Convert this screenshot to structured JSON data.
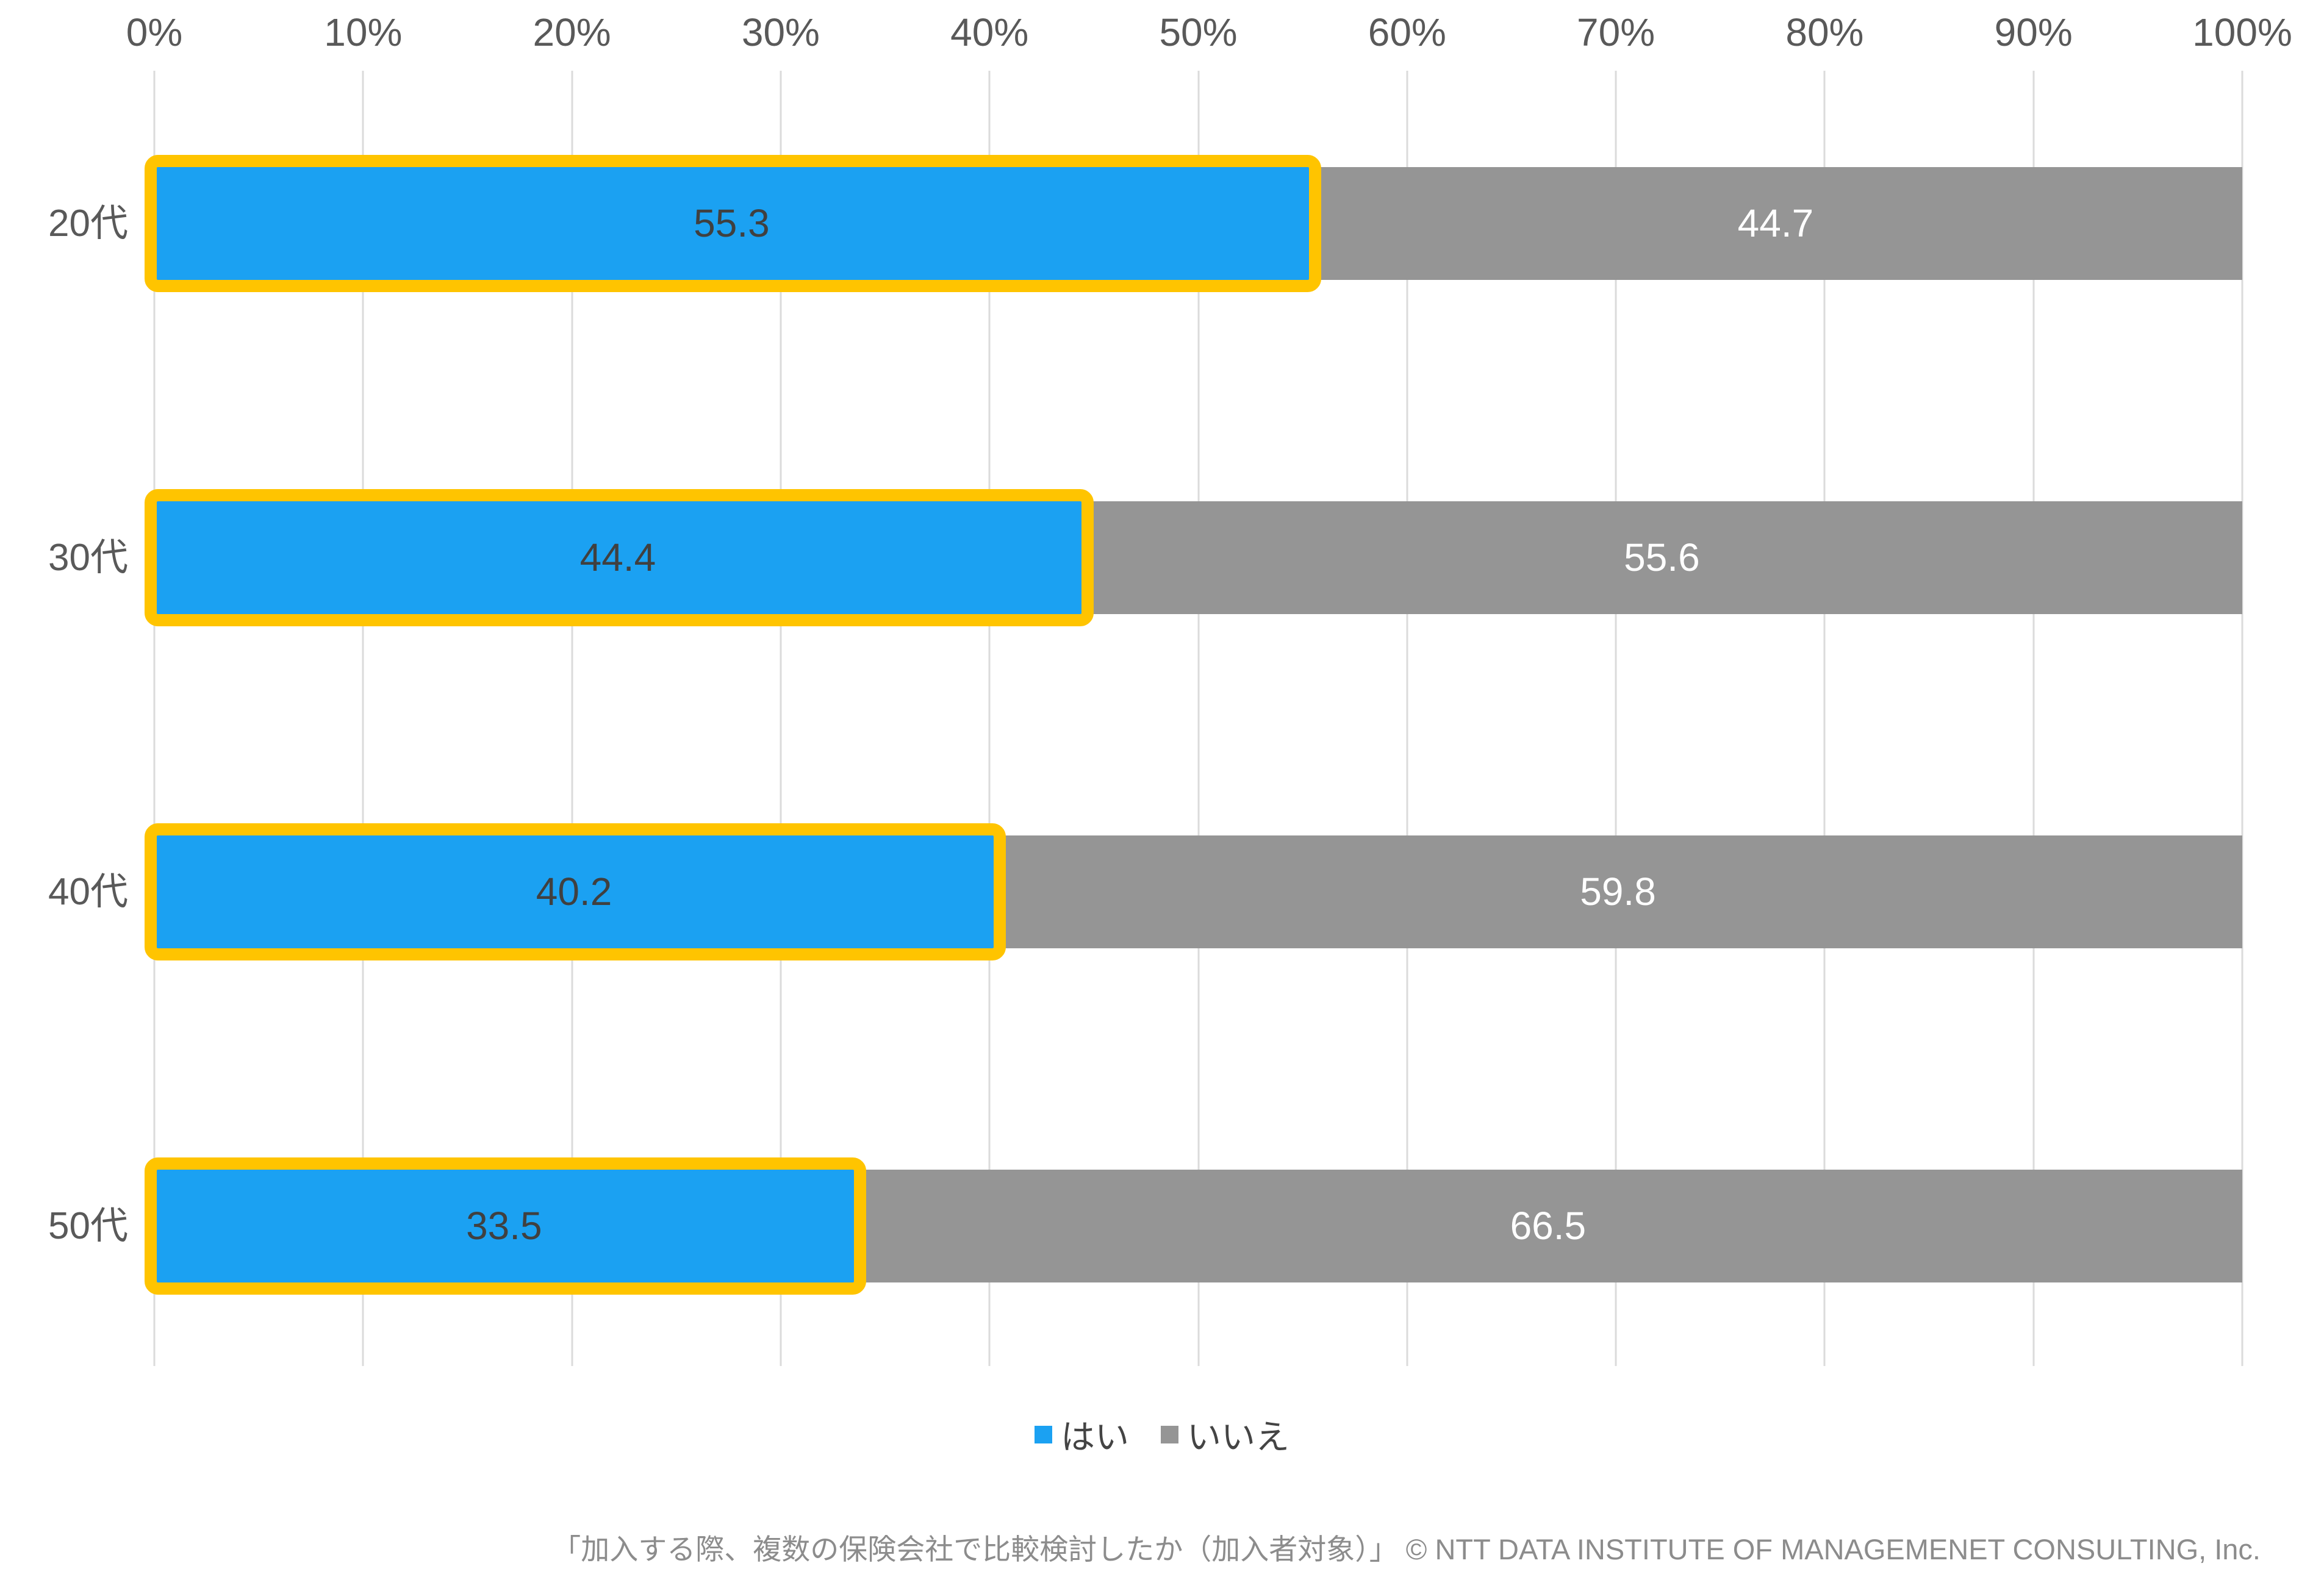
{
  "chart_data": {
    "type": "bar",
    "orientation": "horizontal_stacked",
    "title": "",
    "categories": [
      "20代",
      "30代",
      "40代",
      "50代"
    ],
    "series": [
      {
        "name": "はい",
        "color": "#1BA1F2",
        "values": [
          55.3,
          44.4,
          40.2,
          33.5
        ],
        "value_label_color": "#404040",
        "highlight_border_color": "#FFC400"
      },
      {
        "name": "いいえ",
        "color": "#959595",
        "values": [
          44.7,
          55.6,
          59.8,
          66.5
        ],
        "value_label_color": "#FFFFFF"
      }
    ],
    "x_axis": {
      "position": "top",
      "min": 0,
      "max": 100,
      "tick_step": 10,
      "tick_labels": [
        "0%",
        "10%",
        "20%",
        "30%",
        "40%",
        "50%",
        "60%",
        "70%",
        "80%",
        "90%",
        "100%"
      ]
    },
    "grid": true,
    "gridline_color": "#DBDBDB",
    "axis_text_color": "#595959",
    "legend_position": "bottom",
    "legend": [
      "はい",
      "いいえ"
    ],
    "caption": "「加入する際、複数の保険会社で比較検討したか（加入者対象）」 © NTT DATA INSTITUTE OF MANAGEMENET CONSULTING, Inc."
  }
}
